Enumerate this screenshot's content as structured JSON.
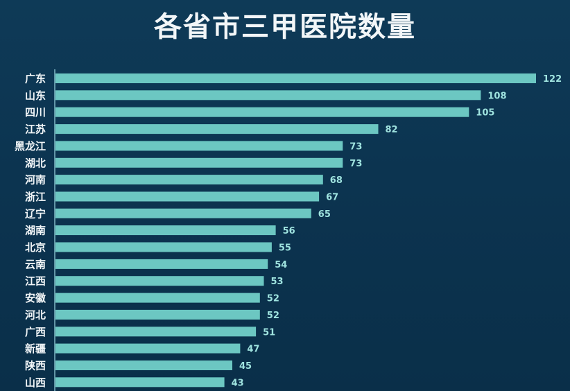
{
  "title": "各省市三甲医院数量",
  "chart_data": {
    "type": "bar",
    "orientation": "horizontal",
    "title": "各省市三甲医院数量",
    "xlabel": "",
    "ylabel": "",
    "categories": [
      "广东",
      "山东",
      "四川",
      "江苏",
      "黑龙江",
      "湖北",
      "河南",
      "浙江",
      "辽宁",
      "湖南",
      "北京",
      "云南",
      "江西",
      "安徽",
      "河北",
      "广西",
      "新疆",
      "陕西",
      "山西"
    ],
    "values": [
      122,
      108,
      105,
      82,
      73,
      73,
      68,
      67,
      65,
      56,
      55,
      54,
      53,
      52,
      52,
      51,
      47,
      45,
      43
    ],
    "xlim": [
      0,
      122
    ],
    "grid": false,
    "legend": "none",
    "bar_color": "#6cc7c2",
    "axis_color": "#7fb7c4"
  }
}
